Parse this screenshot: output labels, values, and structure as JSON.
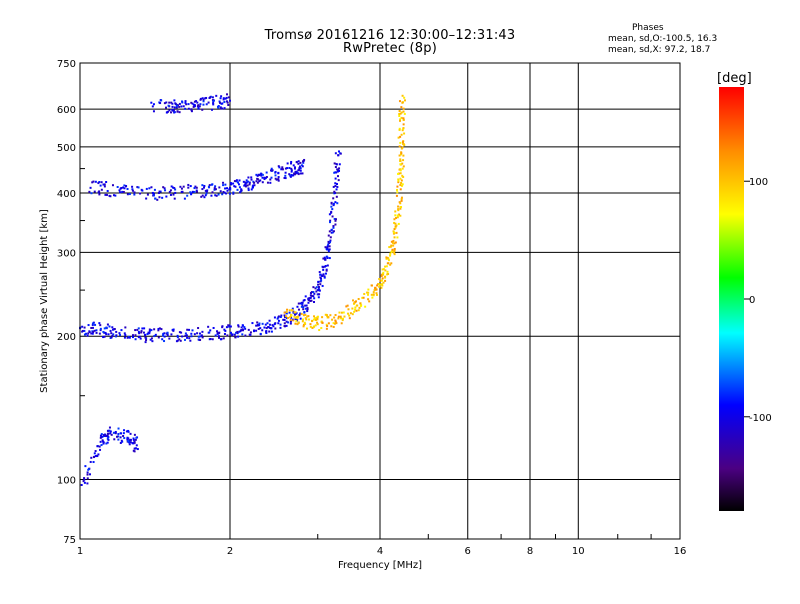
{
  "header": {
    "title_line1": "Tromsø 20161216 12:30:00–12:31:43",
    "title_line2": "RwPretec (8p)",
    "stats_title": "Phases",
    "stats_o": "mean, sd,O:-100.5, 16.3",
    "stats_x": "mean, sd,X:  97.2, 18.7"
  },
  "chart_data": {
    "type": "scatter",
    "xlabel": "Frequency [MHz]",
    "ylabel": "Stationary phase Virtual Height [km]",
    "x_scale": "log",
    "y_scale": "log",
    "xlim": [
      1,
      16
    ],
    "ylim": [
      75,
      750
    ],
    "x_ticks": [
      1,
      2,
      4,
      6,
      8,
      10,
      16
    ],
    "y_ticks": [
      75,
      100,
      200,
      300,
      400,
      500,
      600,
      750
    ],
    "grid": true,
    "colorbar": {
      "label": "[deg]",
      "range": [
        -180,
        180
      ],
      "ticks": [
        100,
        0,
        -100
      ],
      "colormap": [
        "#000000",
        "#4b0082",
        "#0000ff",
        "#00ffff",
        "#00ff00",
        "#ffff00",
        "#ff8c00",
        "#ff0000"
      ]
    },
    "series": [
      {
        "trace": "o-mode F-layer trace",
        "color_phase": -100,
        "x": [
          1.0,
          1.1,
          1.2,
          1.35,
          1.5,
          1.7,
          1.9,
          2.1,
          2.3,
          2.5,
          2.7,
          2.85,
          3.0,
          3.1,
          3.2,
          3.25,
          3.3
        ],
        "y": [
          208,
          206,
          203,
          201,
          201,
          202,
          203,
          205,
          208,
          213,
          222,
          232,
          250,
          280,
          330,
          400,
          480
        ]
      },
      {
        "trace": "x-mode F-layer trace",
        "color_phase": 100,
        "x": [
          2.6,
          2.8,
          3.0,
          3.3,
          3.6,
          3.9,
          4.1,
          4.25,
          4.35,
          4.4,
          4.42,
          4.44
        ],
        "y": [
          225,
          215,
          212,
          218,
          232,
          250,
          275,
          310,
          370,
          440,
          530,
          640
        ]
      },
      {
        "trace": "multiple-hop echo ~400 km",
        "color_phase": -100,
        "x": [
          1.05,
          1.2,
          1.4,
          1.6,
          1.8,
          2.0,
          2.15,
          2.3,
          2.5,
          2.7,
          2.8
        ],
        "y": [
          410,
          405,
          400,
          402,
          405,
          410,
          415,
          425,
          440,
          450,
          455
        ]
      },
      {
        "trace": "echo ~600 km",
        "color_phase": -100,
        "x": [
          1.4,
          1.55,
          1.7,
          1.85,
          2.0
        ],
        "y": [
          608,
          605,
          612,
          618,
          625
        ]
      },
      {
        "trace": "E-region echoes",
        "color_phase": -100,
        "x": [
          1.02,
          1.1,
          1.15,
          1.25,
          1.3
        ],
        "y": [
          100,
          120,
          125,
          122,
          118
        ]
      }
    ]
  }
}
